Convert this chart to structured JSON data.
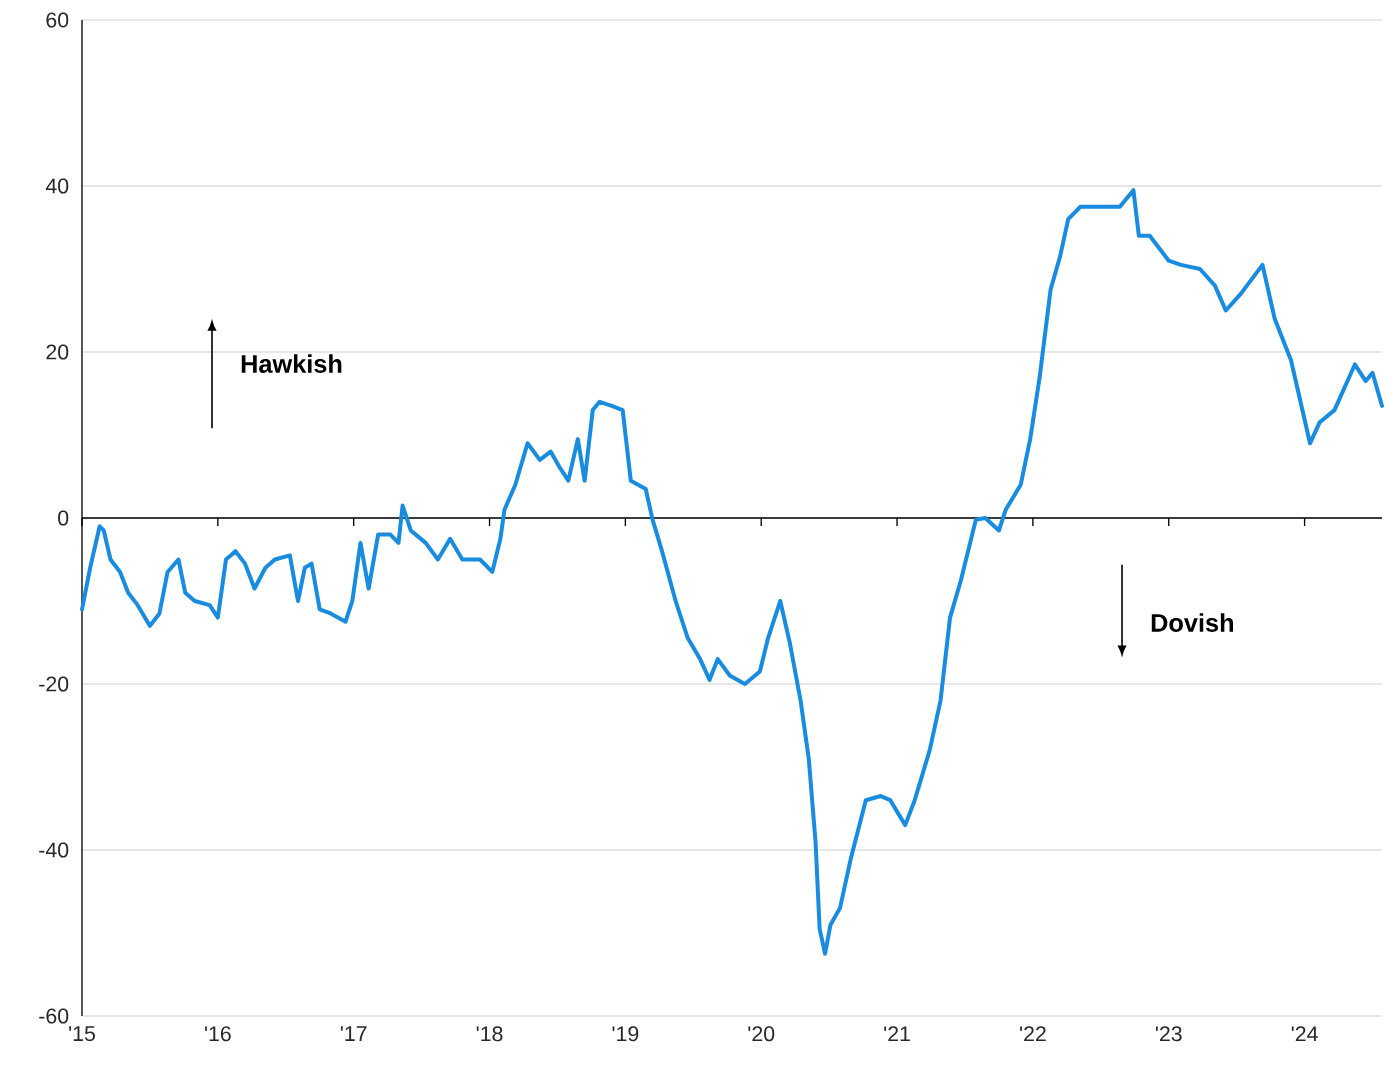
{
  "chart_data": {
    "type": "line",
    "x": [
      2015.0,
      2015.06,
      2015.13,
      2015.16,
      2015.21,
      2015.28,
      2015.34,
      2015.41,
      2015.5,
      2015.57,
      2015.63,
      2015.71,
      2015.76,
      2015.83,
      2015.94,
      2016.0,
      2016.06,
      2016.13,
      2016.2,
      2016.27,
      2016.35,
      2016.42,
      2016.53,
      2016.59,
      2016.64,
      2016.69,
      2016.75,
      2016.83,
      2016.94,
      2016.99,
      2017.05,
      2017.11,
      2017.18,
      2017.27,
      2017.33,
      2017.36,
      2017.42,
      2017.53,
      2017.62,
      2017.71,
      2017.8,
      2017.93,
      2018.02,
      2018.08,
      2018.11,
      2018.19,
      2018.28,
      2018.37,
      2018.45,
      2018.52,
      2018.58,
      2018.65,
      2018.7,
      2018.76,
      2018.81,
      2018.9,
      2018.98,
      2019.04,
      2019.15,
      2019.2,
      2019.27,
      2019.37,
      2019.46,
      2019.55,
      2019.62,
      2019.68,
      2019.77,
      2019.88,
      2019.99,
      2020.05,
      2020.14,
      2020.21,
      2020.29,
      2020.35,
      2020.4,
      2020.43,
      2020.47,
      2020.51,
      2020.58,
      2020.66,
      2020.77,
      2020.88,
      2020.95,
      2021.06,
      2021.13,
      2021.24,
      2021.32,
      2021.39,
      2021.47,
      2021.58,
      2021.65,
      2021.75,
      2021.8,
      2021.91,
      2021.98,
      2022.05,
      2022.13,
      2022.2,
      2022.26,
      2022.35,
      2022.5,
      2022.64,
      2022.74,
      2022.78,
      2022.86,
      2023.0,
      2023.09,
      2023.23,
      2023.34,
      2023.42,
      2023.53,
      2023.69,
      2023.78,
      2023.9,
      2024.04,
      2024.11,
      2024.22,
      2024.37,
      2024.45,
      2024.5,
      2024.57
    ],
    "series": [
      {
        "color": "#1a8ce0",
        "values": [
          -11,
          -6,
          -1,
          -1.5,
          -5,
          -6.5,
          -9,
          -10.5,
          -13,
          -11.5,
          -6.5,
          -5,
          -9,
          -10,
          -10.5,
          -12,
          -5,
          -4,
          -5.5,
          -8.5,
          -6,
          -5,
          -4.5,
          -10,
          -6,
          -5.5,
          -11,
          -11.5,
          -12.5,
          -10,
          -3,
          -8.5,
          -2,
          -2,
          -3,
          1.5,
          -1.5,
          -3,
          -5,
          -2.5,
          -5,
          -5,
          -6.5,
          -2.5,
          1,
          4,
          9,
          7,
          8,
          6,
          4.5,
          9.5,
          4.5,
          13,
          14,
          13.5,
          13,
          4.5,
          3.5,
          -0.2,
          -4,
          -10,
          -14.5,
          -17,
          -19.5,
          -17,
          -19,
          -20,
          -18.5,
          -14.5,
          -10,
          -15,
          -22,
          -29,
          -39,
          -49.5,
          -52.5,
          -49,
          -47,
          -41,
          -34,
          -33.5,
          -34,
          -37,
          -34,
          -28,
          -22,
          -12,
          -7.5,
          -0.2,
          0,
          -1.5,
          1,
          4,
          9.5,
          17,
          27.5,
          31.5,
          36,
          37.5,
          37.5,
          37.5,
          39.5,
          34,
          34,
          31,
          30.5,
          30,
          28,
          25,
          27,
          30.5,
          24,
          19,
          9,
          11.5,
          13,
          18.5,
          16.5,
          17.5,
          13.5
        ]
      }
    ],
    "xlim": [
      2015,
      2024.57
    ],
    "xticks": [
      {
        "value": 2015,
        "label": "'15"
      },
      {
        "value": 2016,
        "label": "'16"
      },
      {
        "value": 2017,
        "label": "'17"
      },
      {
        "value": 2018,
        "label": "'18"
      },
      {
        "value": 2019,
        "label": "'19"
      },
      {
        "value": 2020,
        "label": "'20"
      },
      {
        "value": 2021,
        "label": "'21"
      },
      {
        "value": 2022,
        "label": "'22"
      },
      {
        "value": 2023,
        "label": "'23"
      },
      {
        "value": 2024,
        "label": "'24"
      }
    ],
    "ylim": [
      -60,
      60
    ],
    "yticks": [
      -60,
      -40,
      -20,
      0,
      20,
      40,
      60
    ],
    "grid": "y",
    "ref_lines": [
      {
        "axis": "y",
        "value": 0,
        "color": "#000000"
      }
    ],
    "annotations": [
      "Hawkish",
      "Dovish"
    ]
  }
}
